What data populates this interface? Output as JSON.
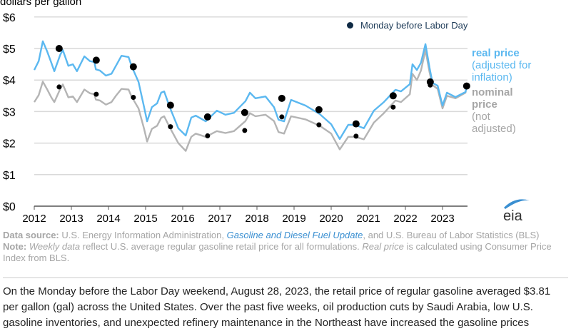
{
  "chart_data": {
    "type": "line",
    "title": "",
    "ylabel": "dollars per gallon",
    "xlabel": "",
    "xlim": [
      2012,
      2023.7
    ],
    "ylim": [
      0,
      6
    ],
    "y_ticks": [
      "$0",
      "$1",
      "$2",
      "$3",
      "$4",
      "$5",
      "$6"
    ],
    "y_tick_values": [
      0,
      1,
      2,
      3,
      4,
      5,
      6
    ],
    "x_ticks": [
      "2012",
      "2013",
      "2014",
      "2015",
      "2016",
      "2017",
      "2018",
      "2019",
      "2020",
      "2021",
      "2022",
      "2023"
    ],
    "grid": true,
    "legend": {
      "label": "Monday before Labor Day",
      "placement": "top-right"
    },
    "series": [
      {
        "name": "real price",
        "sublabel": "(adjusted for inflation)",
        "color": "#5bb8f0",
        "points": [
          [
            2012.0,
            4.32
          ],
          [
            2012.12,
            4.6
          ],
          [
            2012.23,
            5.23
          ],
          [
            2012.35,
            4.9
          ],
          [
            2012.46,
            4.55
          ],
          [
            2012.54,
            4.28
          ],
          [
            2012.7,
            4.8
          ],
          [
            2012.77,
            4.95
          ],
          [
            2012.92,
            4.45
          ],
          [
            2013.04,
            4.5
          ],
          [
            2013.15,
            4.28
          ],
          [
            2013.35,
            4.75
          ],
          [
            2013.5,
            4.6
          ],
          [
            2013.62,
            4.57
          ],
          [
            2013.66,
            4.34
          ],
          [
            2013.77,
            4.3
          ],
          [
            2013.93,
            4.14
          ],
          [
            2014.08,
            4.2
          ],
          [
            2014.2,
            4.45
          ],
          [
            2014.35,
            4.77
          ],
          [
            2014.54,
            4.73
          ],
          [
            2014.62,
            4.45
          ],
          [
            2014.81,
            3.94
          ],
          [
            2014.96,
            3.14
          ],
          [
            2015.04,
            2.69
          ],
          [
            2015.17,
            3.14
          ],
          [
            2015.31,
            3.26
          ],
          [
            2015.42,
            3.6
          ],
          [
            2015.5,
            3.64
          ],
          [
            2015.65,
            3.14
          ],
          [
            2015.88,
            2.47
          ],
          [
            2016.08,
            2.24
          ],
          [
            2016.23,
            2.81
          ],
          [
            2016.35,
            2.87
          ],
          [
            2016.62,
            2.69
          ],
          [
            2016.92,
            3.03
          ],
          [
            2017.15,
            2.9
          ],
          [
            2017.38,
            2.96
          ],
          [
            2017.69,
            3.33
          ],
          [
            2017.81,
            3.6
          ],
          [
            2017.96,
            3.42
          ],
          [
            2018.23,
            3.48
          ],
          [
            2018.46,
            3.14
          ],
          [
            2018.58,
            2.74
          ],
          [
            2018.73,
            2.69
          ],
          [
            2018.92,
            3.37
          ],
          [
            2019.31,
            3.19
          ],
          [
            2019.69,
            2.92
          ],
          [
            2020.0,
            2.6
          ],
          [
            2020.23,
            2.13
          ],
          [
            2020.46,
            2.58
          ],
          [
            2020.65,
            2.58
          ],
          [
            2020.88,
            2.47
          ],
          [
            2021.15,
            3.03
          ],
          [
            2021.42,
            3.3
          ],
          [
            2021.73,
            3.69
          ],
          [
            2021.88,
            3.64
          ],
          [
            2022.12,
            3.87
          ],
          [
            2022.19,
            4.5
          ],
          [
            2022.31,
            4.32
          ],
          [
            2022.42,
            4.55
          ],
          [
            2022.54,
            5.14
          ],
          [
            2022.65,
            4.39
          ],
          [
            2022.73,
            3.91
          ],
          [
            2022.87,
            3.82
          ],
          [
            2023.0,
            3.19
          ],
          [
            2023.12,
            3.6
          ],
          [
            2023.35,
            3.46
          ],
          [
            2023.5,
            3.55
          ],
          [
            2023.62,
            3.62
          ],
          [
            2023.65,
            3.81
          ]
        ]
      },
      {
        "name": "nominal price",
        "sublabel": "(not adjusted)",
        "color": "#b4b4b4",
        "points": [
          [
            2012.0,
            3.3
          ],
          [
            2012.12,
            3.52
          ],
          [
            2012.23,
            3.95
          ],
          [
            2012.35,
            3.7
          ],
          [
            2012.46,
            3.45
          ],
          [
            2012.54,
            3.3
          ],
          [
            2012.7,
            3.72
          ],
          [
            2012.77,
            3.86
          ],
          [
            2012.92,
            3.45
          ],
          [
            2013.04,
            3.48
          ],
          [
            2013.15,
            3.3
          ],
          [
            2013.35,
            3.7
          ],
          [
            2013.5,
            3.58
          ],
          [
            2013.62,
            3.55
          ],
          [
            2013.66,
            3.38
          ],
          [
            2013.77,
            3.35
          ],
          [
            2013.93,
            3.22
          ],
          [
            2014.08,
            3.3
          ],
          [
            2014.2,
            3.5
          ],
          [
            2014.35,
            3.72
          ],
          [
            2014.54,
            3.7
          ],
          [
            2014.62,
            3.48
          ],
          [
            2014.81,
            3.1
          ],
          [
            2014.96,
            2.45
          ],
          [
            2015.04,
            2.05
          ],
          [
            2015.17,
            2.45
          ],
          [
            2015.31,
            2.55
          ],
          [
            2015.42,
            2.8
          ],
          [
            2015.5,
            2.85
          ],
          [
            2015.65,
            2.5
          ],
          [
            2015.88,
            2.0
          ],
          [
            2016.08,
            1.75
          ],
          [
            2016.23,
            2.2
          ],
          [
            2016.35,
            2.3
          ],
          [
            2016.62,
            2.2
          ],
          [
            2016.92,
            2.38
          ],
          [
            2017.15,
            2.32
          ],
          [
            2017.38,
            2.38
          ],
          [
            2017.69,
            2.7
          ],
          [
            2017.81,
            2.95
          ],
          [
            2017.96,
            2.85
          ],
          [
            2018.23,
            2.9
          ],
          [
            2018.46,
            2.7
          ],
          [
            2018.58,
            2.35
          ],
          [
            2018.73,
            2.3
          ],
          [
            2018.92,
            2.85
          ],
          [
            2019.31,
            2.75
          ],
          [
            2019.69,
            2.55
          ],
          [
            2020.0,
            2.3
          ],
          [
            2020.23,
            1.8
          ],
          [
            2020.46,
            2.2
          ],
          [
            2020.65,
            2.2
          ],
          [
            2020.88,
            2.12
          ],
          [
            2021.15,
            2.65
          ],
          [
            2021.42,
            2.95
          ],
          [
            2021.73,
            3.35
          ],
          [
            2021.88,
            3.3
          ],
          [
            2022.12,
            3.55
          ],
          [
            2022.19,
            4.2
          ],
          [
            2022.31,
            4.0
          ],
          [
            2022.42,
            4.3
          ],
          [
            2022.54,
            4.95
          ],
          [
            2022.65,
            4.25
          ],
          [
            2022.73,
            3.84
          ],
          [
            2022.87,
            3.72
          ],
          [
            2023.0,
            3.1
          ],
          [
            2023.12,
            3.5
          ],
          [
            2023.35,
            3.42
          ],
          [
            2023.5,
            3.52
          ],
          [
            2023.62,
            3.6
          ],
          [
            2023.65,
            3.81
          ]
        ]
      }
    ],
    "labor_day_points": {
      "real": [
        [
          2012.67,
          5.0
        ],
        [
          2013.67,
          4.63
        ],
        [
          2014.67,
          4.42
        ],
        [
          2015.67,
          3.2
        ],
        [
          2016.67,
          2.83
        ],
        [
          2017.67,
          2.97
        ],
        [
          2018.67,
          3.42
        ],
        [
          2019.67,
          3.06
        ],
        [
          2020.67,
          2.61
        ],
        [
          2021.67,
          3.5
        ],
        [
          2022.67,
          3.94
        ],
        [
          2023.65,
          3.81
        ]
      ],
      "nominal": [
        [
          2012.67,
          3.78
        ],
        [
          2013.67,
          3.55
        ],
        [
          2014.67,
          3.45
        ],
        [
          2015.67,
          2.52
        ],
        [
          2016.67,
          2.23
        ],
        [
          2017.67,
          2.4
        ],
        [
          2018.67,
          2.83
        ],
        [
          2019.67,
          2.58
        ],
        [
          2020.67,
          2.22
        ],
        [
          2021.67,
          3.14
        ],
        [
          2022.67,
          3.84
        ],
        [
          2023.65,
          3.81
        ]
      ]
    }
  },
  "labels": {
    "y_axis_title": "dollars per gallon",
    "legend_text": "Monday before Labor Day",
    "real_title": "real price",
    "real_sub1": "(adjusted for",
    "real_sub2": "inflation)",
    "nominal_title1": "nominal",
    "nominal_title2": "price",
    "nominal_sub1": "(not",
    "nominal_sub2": "adjusted)",
    "logo_text": "eia"
  },
  "notes": {
    "source_label": "Data source:",
    "source_text1": " U.S. Energy Information Administration, ",
    "source_link": "Gasoline and Diesel Fuel Update",
    "source_text2": ", and U.S. Bureau of Labor Statistics (BLS)",
    "note_label": "Note:",
    "note_italic1": "Weekly data",
    "note_text1": " reflect U.S. average regular gasoline retail price for all formulations. ",
    "note_italic2": "Real price",
    "note_text2": " is calculated using Consumer Price Index from BLS."
  },
  "article": {
    "line1": "On the Monday before the Labor Day weekend, August 28, 2023, the retail price of regular gasoline averaged $3.81",
    "line2": "per gallon (gal) across the United States. Over the past five weeks, oil production cuts by Saudi Arabia, low U.S.",
    "line3": "gasoline inventories, and unexpected refinery maintenance in the Northeast have increased the gasoline prices"
  },
  "colors": {
    "real": "#5bb8f0",
    "nominal": "#b4b4b4",
    "dot": "#000000",
    "grid": "#d9d9d9",
    "axis": "#555555",
    "link": "#3a8fd1"
  }
}
